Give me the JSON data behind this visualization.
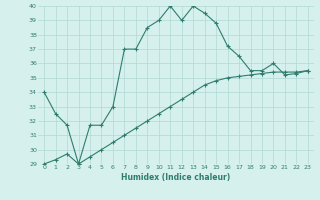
{
  "xlabel": "Humidex (Indice chaleur)",
  "x": [
    0,
    1,
    2,
    3,
    4,
    5,
    6,
    7,
    8,
    9,
    10,
    11,
    12,
    13,
    14,
    15,
    16,
    17,
    18,
    19,
    20,
    21,
    22,
    23
  ],
  "y_main": [
    34,
    32.5,
    31.7,
    29,
    31.7,
    31.7,
    33,
    37,
    37,
    38.5,
    39,
    40,
    39,
    40,
    39.5,
    38.8,
    37.2,
    36.5,
    35.5,
    35.5,
    36,
    35.2,
    35.3,
    35.5
  ],
  "y_lower": [
    29,
    29.3,
    29.7,
    29,
    29.5,
    30.0,
    30.5,
    31.0,
    31.5,
    32.0,
    32.5,
    33.0,
    33.5,
    34.0,
    34.5,
    34.8,
    35.0,
    35.1,
    35.2,
    35.3,
    35.4,
    35.4,
    35.4,
    35.5
  ],
  "ylim": [
    29,
    40
  ],
  "xlim": [
    -0.5,
    23.5
  ],
  "yticks": [
    29,
    30,
    31,
    32,
    33,
    34,
    35,
    36,
    37,
    38,
    39,
    40
  ],
  "xticks": [
    0,
    1,
    2,
    3,
    4,
    5,
    6,
    7,
    8,
    9,
    10,
    11,
    12,
    13,
    14,
    15,
    16,
    17,
    18,
    19,
    20,
    21,
    22,
    23
  ],
  "xtick_labels": [
    "0",
    "1",
    "2",
    "3",
    "4",
    "5",
    "6",
    "7",
    "8",
    "9",
    "10",
    "11",
    "12",
    "13",
    "14",
    "15",
    "16",
    "17",
    "18",
    "19",
    "20",
    "21",
    "22",
    "23"
  ],
  "line_color": "#2e7d6e",
  "bg_color": "#d6f0ee",
  "grid_color": "#b0d8d4"
}
